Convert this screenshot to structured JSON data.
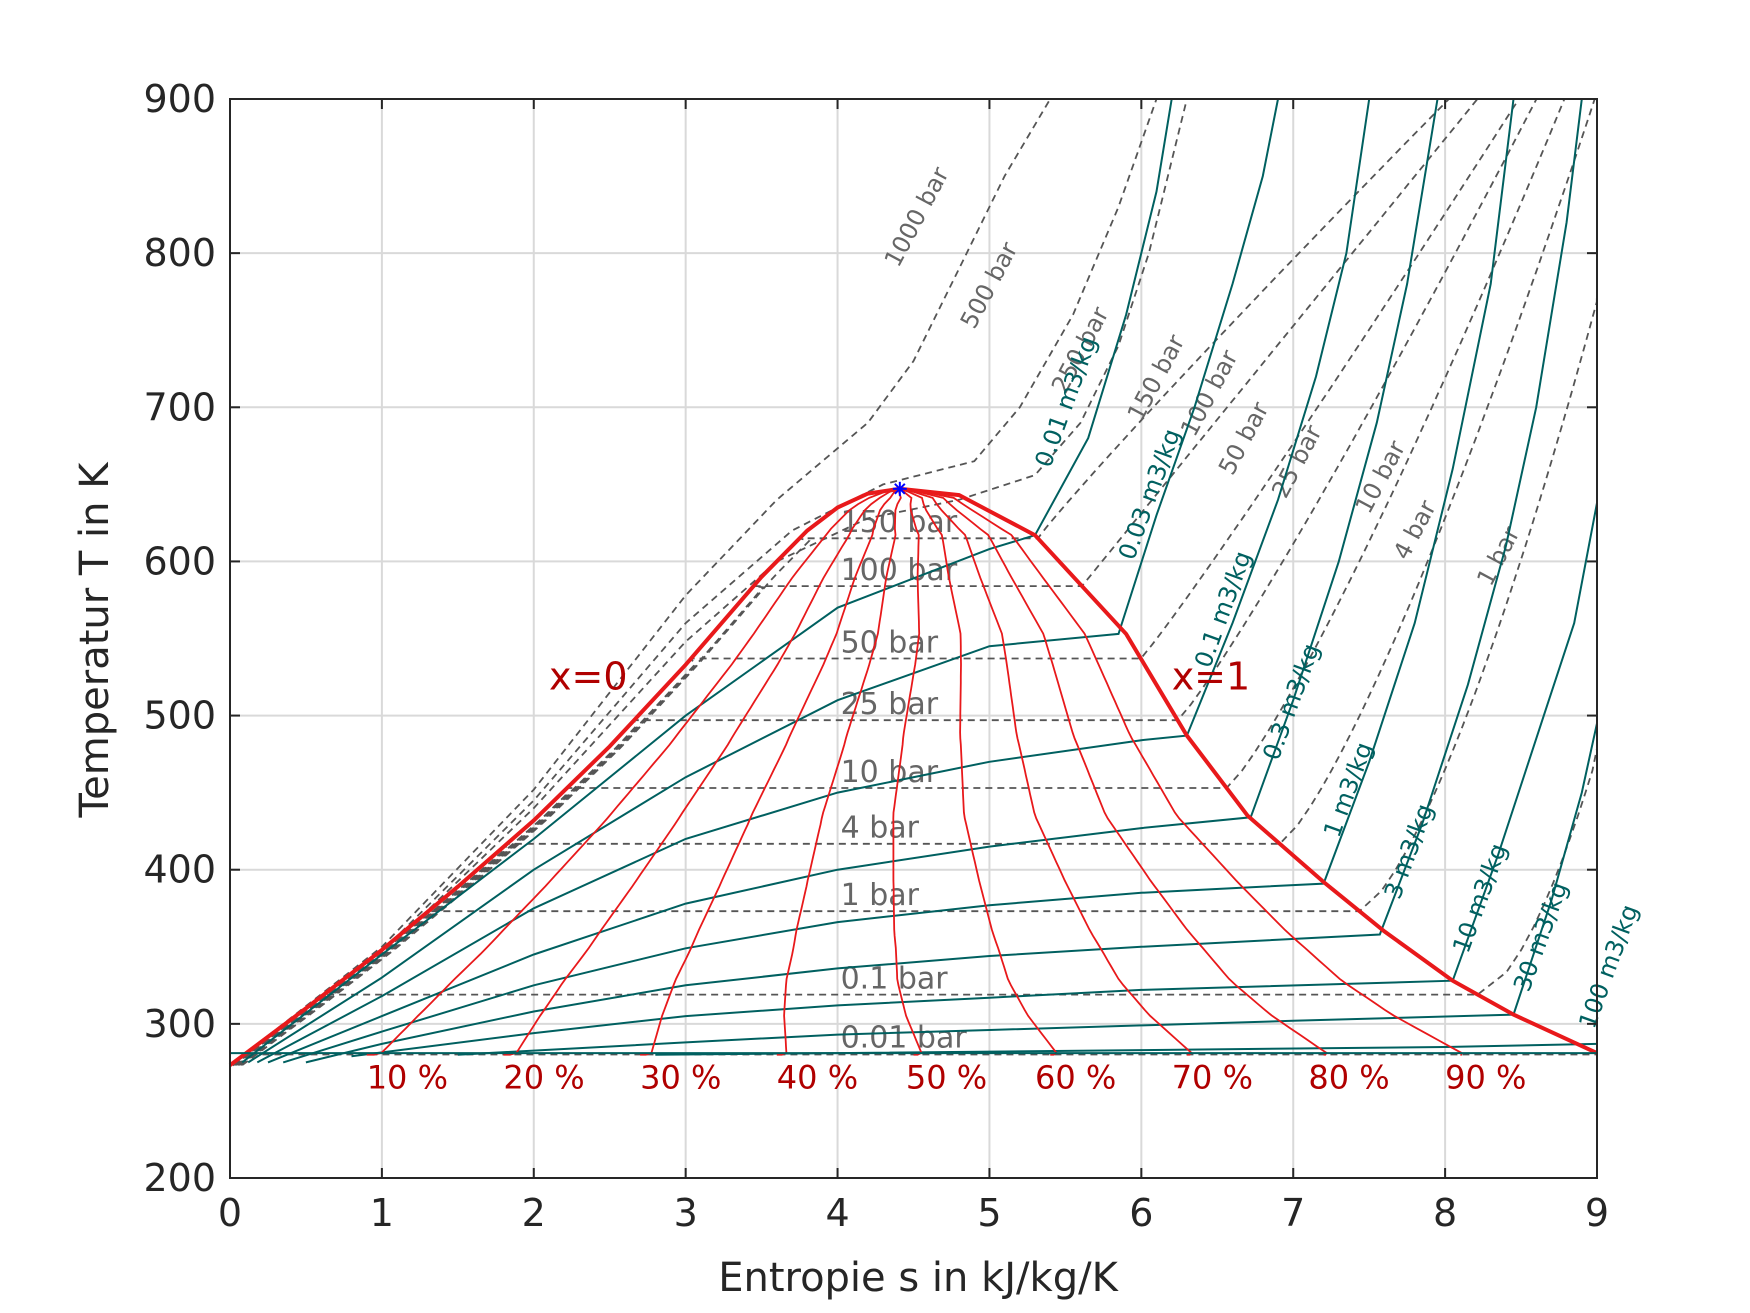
{
  "chart_data": {
    "type": "line",
    "title": "",
    "xlabel": "Entropie s in kJ/kg/K",
    "ylabel": "Temperatur T in K",
    "xlim": [
      0,
      9
    ],
    "ylim": [
      200,
      900
    ],
    "xticks": [
      "0",
      "1",
      "2",
      "3",
      "4",
      "5",
      "6",
      "7",
      "8",
      "9"
    ],
    "yticks": [
      "200",
      "300",
      "400",
      "500",
      "600",
      "700",
      "800",
      "900"
    ],
    "grid": true,
    "colors": {
      "saturation": "#e8191b",
      "quality": "#e8191b",
      "isochore": "#006060",
      "isobar": "#555555",
      "critical": "#0000ff"
    },
    "critical_point": {
      "s": 4.41,
      "T": 647.1
    },
    "saturation_liquid": {
      "name": "x=0",
      "s": [
        0.0,
        0.5,
        1.0,
        1.5,
        2.0,
        2.5,
        3.0,
        3.5,
        3.8,
        4.0,
        4.2,
        4.41
      ],
      "T": [
        273.2,
        310,
        348,
        389,
        432,
        480,
        533,
        590,
        620,
        635,
        644,
        647.1
      ]
    },
    "saturation_vapor": {
      "name": "x=1",
      "s": [
        4.41,
        4.8,
        5.3,
        5.9,
        6.3,
        6.7,
        7.2,
        7.6,
        8.05,
        8.45,
        9.0
      ],
      "T": [
        647.1,
        643,
        617,
        553,
        487,
        435,
        392,
        360,
        328,
        306,
        281
      ]
    },
    "quality_lines": [
      {
        "label": "10 %",
        "s_bottom": 1.0
      },
      {
        "label": "20 %",
        "s_bottom": 1.9
      },
      {
        "label": "30 %",
        "s_bottom": 2.8
      },
      {
        "label": "40 %",
        "s_bottom": 3.7
      },
      {
        "label": "50 %",
        "s_bottom": 4.55
      },
      {
        "label": "60 %",
        "s_bottom": 5.4
      },
      {
        "label": "70 %",
        "s_bottom": 6.3
      },
      {
        "label": "80 %",
        "s_bottom": 7.2
      },
      {
        "label": "90 %",
        "s_bottom": 8.1
      }
    ],
    "isobars": [
      {
        "label": "0.01 bar",
        "T_sat": 280.1
      },
      {
        "label": "0.1 bar",
        "T_sat": 319
      },
      {
        "label": "1 bar",
        "T_sat": 373.1
      },
      {
        "label": "4 bar",
        "T_sat": 416.8
      },
      {
        "label": "10 bar",
        "T_sat": 453
      },
      {
        "label": "25 bar",
        "T_sat": 497
      },
      {
        "label": "50 bar",
        "T_sat": 537
      },
      {
        "label": "100 bar",
        "T_sat": 584
      },
      {
        "label": "150 bar",
        "T_sat": 615
      },
      {
        "label": "250 bar",
        "T_sat": null
      },
      {
        "label": "500 bar",
        "T_sat": null
      },
      {
        "label": "1000 bar",
        "T_sat": null
      }
    ],
    "isochores": [
      {
        "label": "0.01 m3/kg"
      },
      {
        "label": "0.03 m3/kg"
      },
      {
        "label": "0.1 m3/kg"
      },
      {
        "label": "0.3 m3/kg"
      },
      {
        "label": "1 m3/kg"
      },
      {
        "label": "3 m3/kg"
      },
      {
        "label": "10 m3/kg"
      },
      {
        "label": "30 m3/kg"
      },
      {
        "label": "100 m3/kg"
      }
    ]
  }
}
